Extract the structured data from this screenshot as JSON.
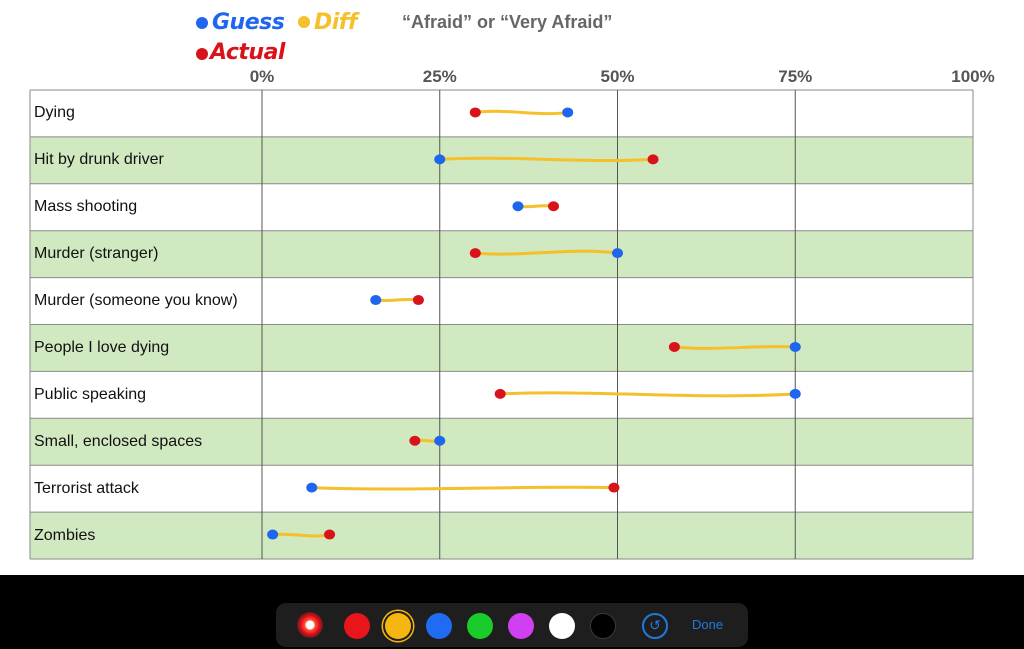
{
  "legend": {
    "guess_label": "Guess",
    "diff_label": "Diff",
    "actual_label": "Actual",
    "guess_color": "#1f66ee",
    "diff_color": "#f5c02a",
    "actual_color": "#d8141a"
  },
  "chart_data": {
    "type": "scatter",
    "title": "“Afraid” or “Very Afraid”",
    "xlim": [
      0,
      100
    ],
    "x_ticks": [
      "0%",
      "25%",
      "50%",
      "75%",
      "100%"
    ],
    "grid": true,
    "row_colors": [
      "#ffffff",
      "#d0e9c0"
    ],
    "categories": [
      "Dying",
      "Hit by drunk driver",
      "Mass shooting",
      "Murder (stranger)",
      "Murder (someone you know)",
      "People I love dying",
      "Public speaking",
      "Small, enclosed spaces",
      "Terrorist attack",
      "Zombies"
    ],
    "series": [
      {
        "name": "Guess",
        "values": [
          43,
          25,
          36,
          50,
          16,
          75,
          75,
          25,
          7,
          1.5
        ]
      },
      {
        "name": "Actual",
        "values": [
          30,
          55,
          41,
          30,
          22,
          58,
          33.5,
          21.5,
          49.5,
          9.5
        ]
      }
    ]
  },
  "toolbar": {
    "colors": [
      "#e8151b",
      "#f5b70f",
      "#1f6cf2",
      "#19cc29",
      "#d03ff0",
      "#ffffff",
      "#000000"
    ],
    "selected_color": "#f5b70f",
    "undo_icon": "undo-icon",
    "done_label": "Done"
  }
}
